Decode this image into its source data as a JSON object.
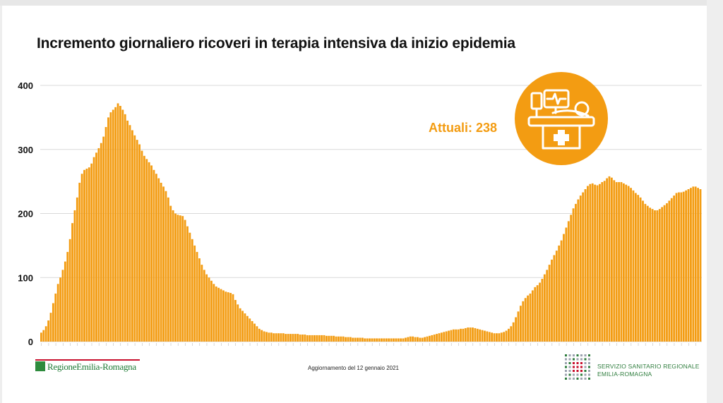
{
  "header": {
    "title": "Incremento giornaliero ricoveri in terapia intensiva da inizio epidemia"
  },
  "badge": {
    "label": "Attuali: 238",
    "icon": "icu-bed-icon",
    "color": "#f39c12"
  },
  "footer": {
    "update_text": "Aggiornamento del 12 gennaio 2021",
    "logo_left_text": "RegioneEmilia-Romagna",
    "logo_right_line1": "SERVIZIO SANITARIO REGIONALE",
    "logo_right_line2": "EMILIA-ROMAGNA"
  },
  "colors": {
    "bar": "#f39c12",
    "grid": "#d9d9d9",
    "brand_green": "#2e7d3d",
    "brand_red": "#c8102e"
  },
  "chart_data": {
    "type": "bar",
    "title": "Incremento giornaliero ricoveri in terapia intensiva da inizio epidemia",
    "xlabel": "",
    "ylabel": "",
    "ylim": [
      0,
      400
    ],
    "yticks": [
      0,
      100,
      200,
      300,
      400
    ],
    "grid": true,
    "values": [
      14,
      18,
      24,
      33,
      45,
      60,
      75,
      90,
      100,
      112,
      125,
      140,
      160,
      185,
      205,
      225,
      248,
      262,
      268,
      270,
      272,
      278,
      288,
      295,
      302,
      310,
      320,
      335,
      350,
      358,
      362,
      366,
      372,
      368,
      362,
      355,
      345,
      338,
      330,
      322,
      315,
      308,
      298,
      290,
      285,
      280,
      275,
      268,
      262,
      255,
      248,
      242,
      235,
      225,
      212,
      205,
      200,
      198,
      197,
      196,
      190,
      180,
      170,
      160,
      150,
      140,
      130,
      120,
      112,
      105,
      100,
      95,
      90,
      86,
      84,
      82,
      80,
      78,
      77,
      76,
      74,
      65,
      58,
      52,
      48,
      44,
      40,
      36,
      32,
      28,
      24,
      20,
      18,
      16,
      15,
      14,
      14,
      13,
      13,
      13,
      13,
      13,
      12,
      12,
      12,
      12,
      12,
      12,
      11,
      11,
      11,
      10,
      10,
      10,
      10,
      10,
      10,
      10,
      10,
      9,
      9,
      9,
      9,
      8,
      8,
      8,
      8,
      7,
      7,
      7,
      6,
      6,
      6,
      6,
      6,
      5,
      5,
      5,
      5,
      5,
      5,
      5,
      5,
      5,
      5,
      5,
      5,
      5,
      5,
      5,
      5,
      5,
      6,
      7,
      8,
      8,
      7,
      7,
      6,
      6,
      7,
      8,
      9,
      10,
      11,
      12,
      13,
      14,
      15,
      16,
      17,
      18,
      19,
      19,
      19,
      20,
      20,
      21,
      22,
      22,
      22,
      21,
      20,
      19,
      18,
      17,
      16,
      15,
      14,
      13,
      13,
      13,
      14,
      15,
      17,
      20,
      24,
      30,
      38,
      47,
      56,
      63,
      68,
      72,
      75,
      80,
      85,
      88,
      92,
      98,
      105,
      112,
      120,
      128,
      135,
      142,
      150,
      158,
      168,
      178,
      188,
      198,
      208,
      215,
      222,
      228,
      233,
      238,
      243,
      246,
      247,
      245,
      244,
      246,
      249,
      251,
      255,
      258,
      256,
      252,
      249,
      249,
      249,
      247,
      245,
      243,
      240,
      236,
      232,
      229,
      225,
      220,
      215,
      212,
      209,
      207,
      205,
      205,
      207,
      210,
      213,
      216,
      220,
      224,
      228,
      232,
      233,
      233,
      234,
      236,
      238,
      240,
      242,
      242,
      240,
      238
    ]
  }
}
